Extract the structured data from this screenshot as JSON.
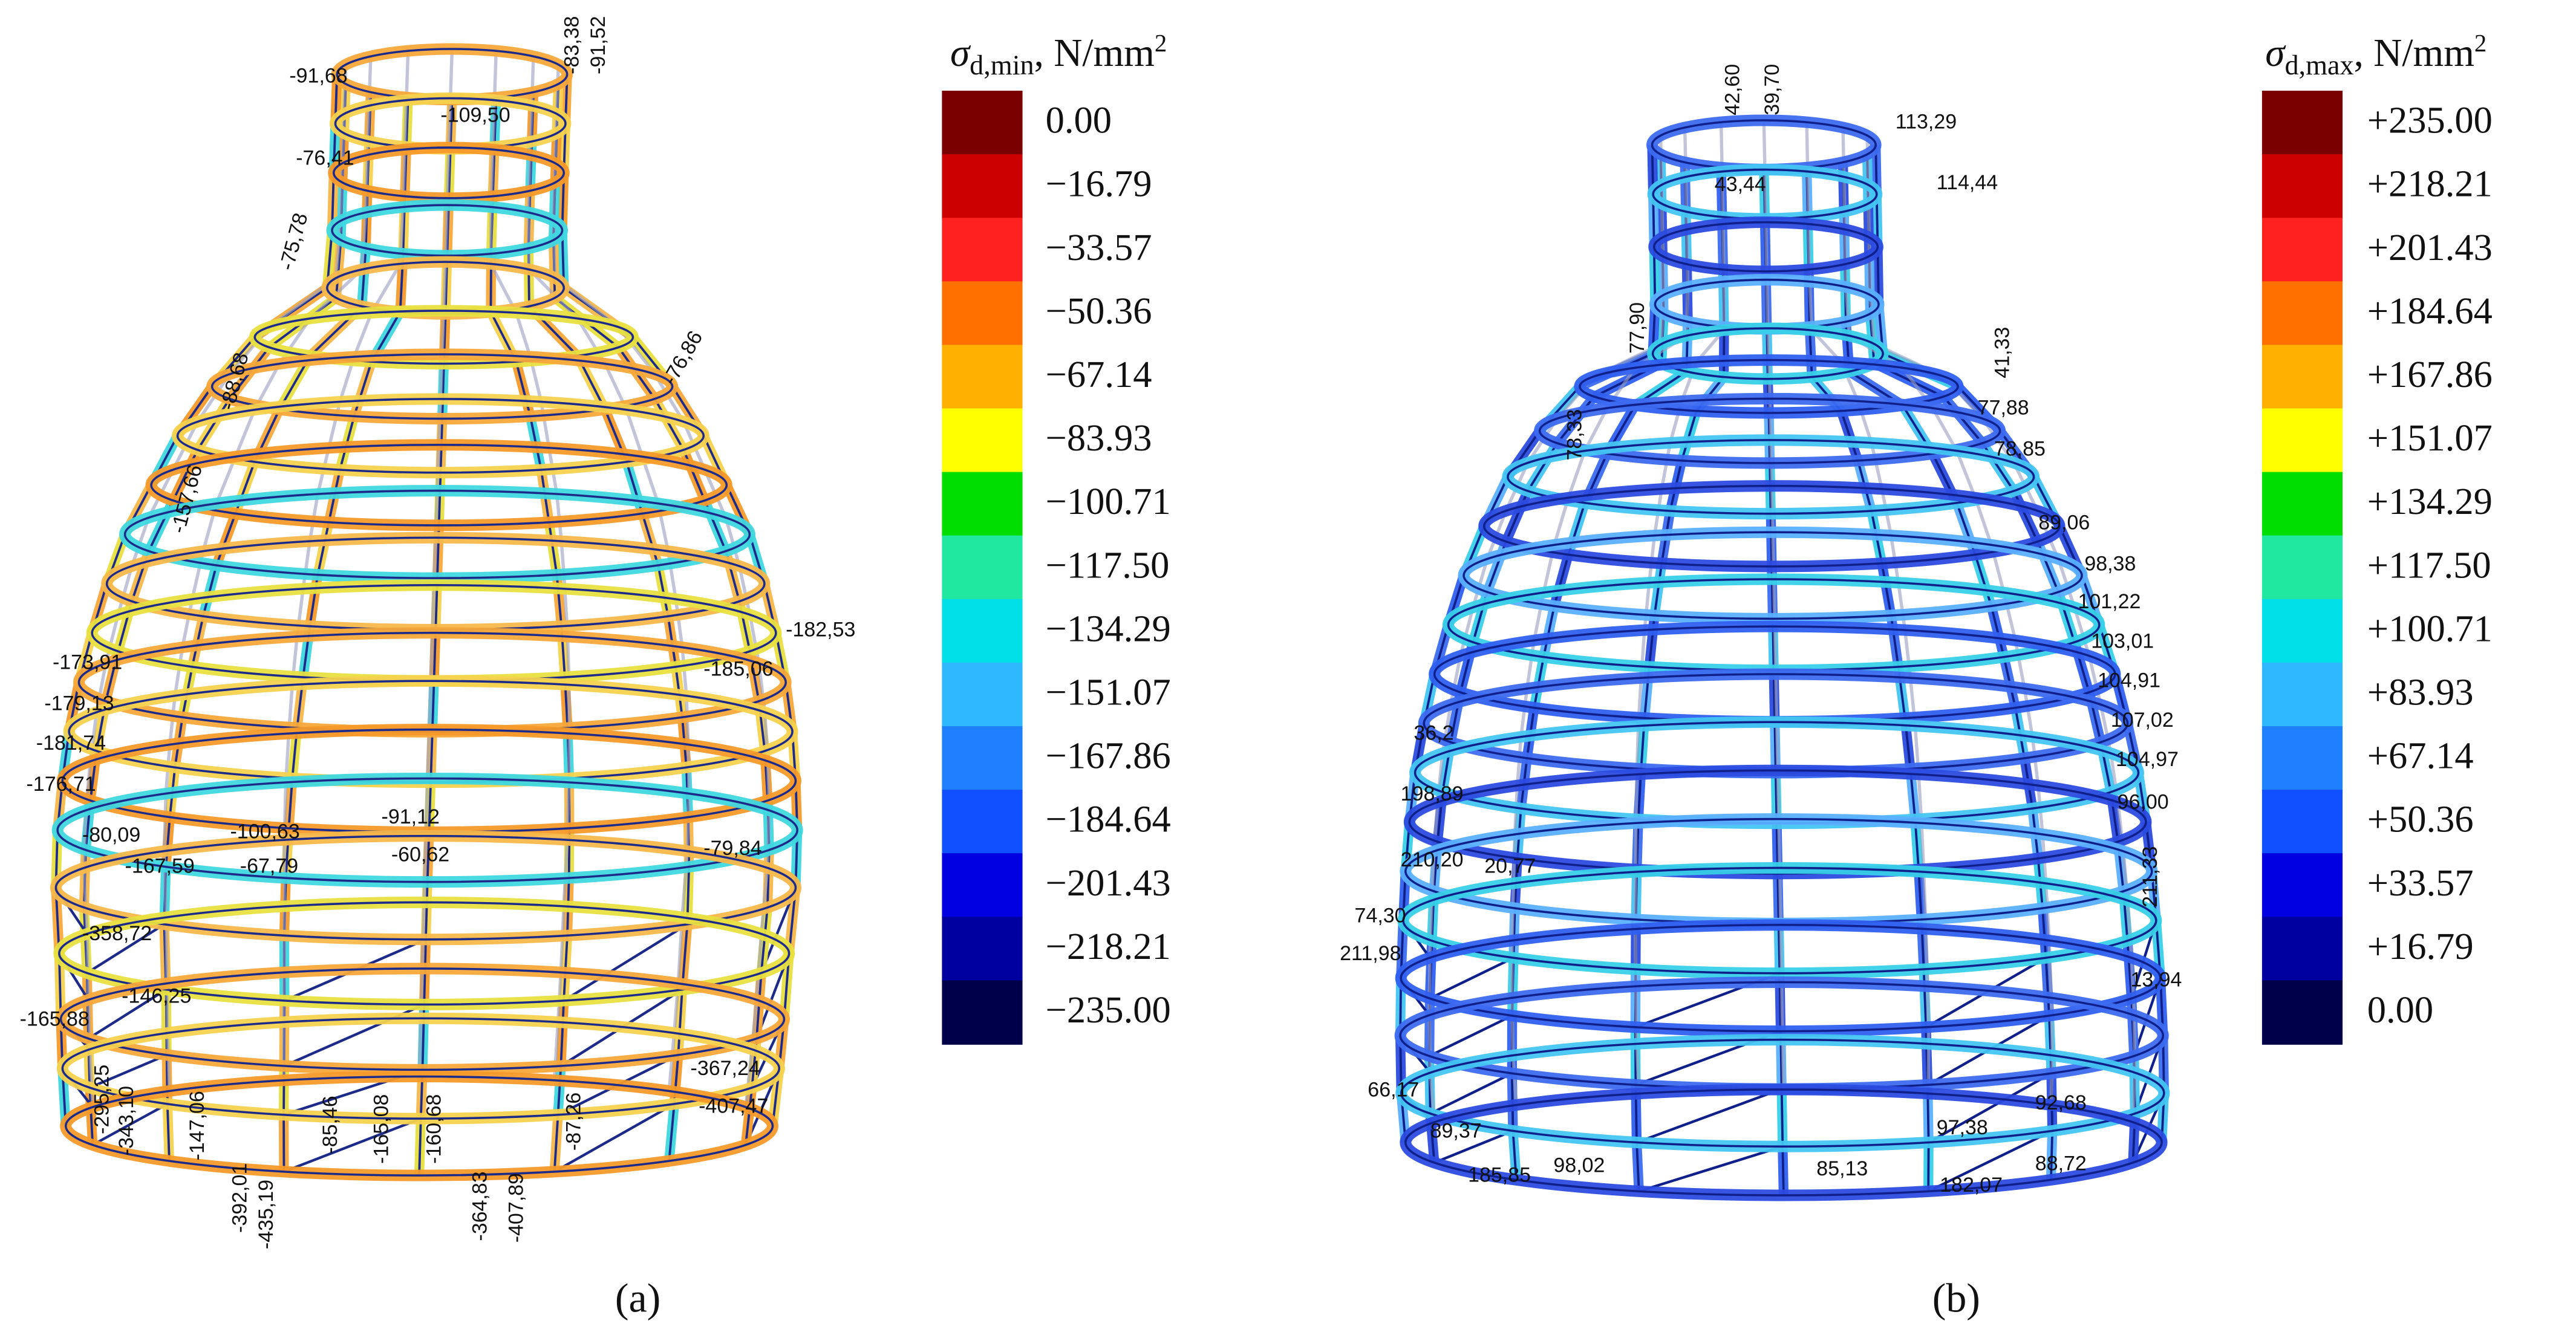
{
  "panels": [
    {
      "label": "(a)",
      "legend": {
        "title": {
          "symbol": "σ",
          "subscript": "d,min",
          "suffix": ", N/mm",
          "superscript": "2"
        },
        "items": [
          {
            "label": "0.00",
            "color": "#7a0000"
          },
          {
            "label": "−16.79",
            "color": "#cc0000"
          },
          {
            "label": "−33.57",
            "color": "#ff2020"
          },
          {
            "label": "−50.36",
            "color": "#ff7000"
          },
          {
            "label": "−67.14",
            "color": "#ffb000"
          },
          {
            "label": "−83.93",
            "color": "#ffff00"
          },
          {
            "label": "−100.71",
            "color": "#00dd00"
          },
          {
            "label": "−117.50",
            "color": "#20e8a0"
          },
          {
            "label": "−134.29",
            "color": "#00e0e8"
          },
          {
            "label": "−151.07",
            "color": "#30b8ff"
          },
          {
            "label": "−167.86",
            "color": "#1e80ff"
          },
          {
            "label": "−184.64",
            "color": "#1050ff"
          },
          {
            "label": "−201.43",
            "color": "#0000e0"
          },
          {
            "label": "−218.21",
            "color": "#0000a0"
          },
          {
            "label": "−235.00",
            "color": "#00004a"
          }
        ]
      },
      "member_labels": [
        "-91,68",
        "-76,41",
        "-109,50",
        "-83,38",
        "-91,52",
        "-75,78",
        "-88,68",
        "-157,66",
        "-76,86",
        "-173,91",
        "-179,13",
        "-181,74",
        "-176,71",
        "-182,53",
        "-185,06",
        "-80,09",
        "-167,59",
        "-100,63",
        "-67,79",
        "-91,12",
        "-60,62",
        "-79,84",
        "-358,72",
        "-165,88",
        "-146,25",
        "-367,24",
        "-407,47",
        "-295,25",
        "-343,10",
        "-147,06",
        "-392,01",
        "-435,19",
        "-85,46",
        "-165,08",
        "-160,68",
        "-364,83",
        "-407,89",
        "-87,26"
      ]
    },
    {
      "label": "(b)",
      "legend": {
        "title": {
          "symbol": "σ",
          "subscript": "d,max",
          "suffix": ", N/mm",
          "superscript": "2"
        },
        "items": [
          {
            "label": "+235.00",
            "color": "#7a0000"
          },
          {
            "label": "+218.21",
            "color": "#cc0000"
          },
          {
            "label": "+201.43",
            "color": "#ff2020"
          },
          {
            "label": "+184.64",
            "color": "#ff7000"
          },
          {
            "label": "+167.86",
            "color": "#ffb000"
          },
          {
            "label": "+151.07",
            "color": "#ffff00"
          },
          {
            "label": "+134.29",
            "color": "#00dd00"
          },
          {
            "label": "+117.50",
            "color": "#20e8a0"
          },
          {
            "label": "+100.71",
            "color": "#00e0e8"
          },
          {
            "label": "+83.93",
            "color": "#30b8ff"
          },
          {
            "label": "+67.14",
            "color": "#1e80ff"
          },
          {
            "label": "+50.36",
            "color": "#1050ff"
          },
          {
            "label": "+33.57",
            "color": "#0000e0"
          },
          {
            "label": "+16.79",
            "color": "#0000a0"
          },
          {
            "label": "0.00",
            "color": "#00004a"
          }
        ]
      },
      "member_labels": [
        "42,60",
        "39,70",
        "113,29",
        "114,44",
        "43,44",
        "77,90",
        "78,33",
        "41,33",
        "77,88",
        "78,85",
        "89,06",
        "98,38",
        "101,22",
        "103,01",
        "104,91",
        "107,02",
        "104,97",
        "96,00",
        "211,33",
        "13,94",
        "36,2",
        "198,89",
        "210,20",
        "20,77",
        "74,30",
        "211,98",
        "66,17",
        "89,37",
        "185,85",
        "98,02",
        "85,13",
        "182,07",
        "97,38",
        "92,68",
        "88,72"
      ]
    }
  ]
}
